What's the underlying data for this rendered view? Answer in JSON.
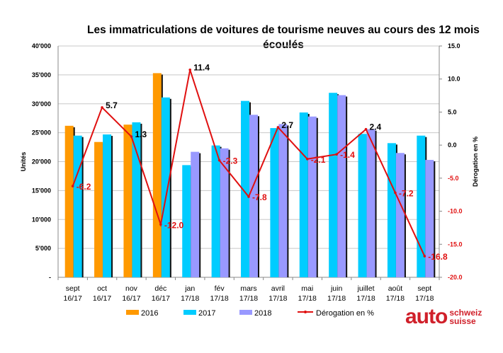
{
  "chart_data": {
    "type": "bar",
    "title": "Les immatriculations de voitures de tourisme neuves au cours des 12 mois écoulés",
    "ylabel": "Unités",
    "y2label": "Dérogation en %",
    "ylim": [
      0,
      40000
    ],
    "y2lim": [
      -20,
      15
    ],
    "yticks": [
      "-",
      "5'000",
      "10'000",
      "15'000",
      "20'000",
      "25'000",
      "30'000",
      "35'000",
      "40'000"
    ],
    "y2ticks": [
      "-20.0",
      "-15.0",
      "-10.0",
      "-5.0",
      "0.0",
      "5.0",
      "10.0",
      "15.0"
    ],
    "grid": true,
    "legend": "bottom",
    "categories": [
      [
        "sept",
        "16/17"
      ],
      [
        "oct",
        "16/17"
      ],
      [
        "nov",
        "16/17"
      ],
      [
        "déc",
        "16/17"
      ],
      [
        "jan",
        "17/18"
      ],
      [
        "fév",
        "17/18"
      ],
      [
        "mars",
        "17/18"
      ],
      [
        "avril",
        "17/18"
      ],
      [
        "mai",
        "17/18"
      ],
      [
        "juin",
        "17/18"
      ],
      [
        "juillet",
        "17/18"
      ],
      [
        "août",
        "17/18"
      ],
      [
        "sept",
        "17/18"
      ]
    ],
    "series": [
      {
        "name": "2016",
        "type": "bar",
        "color": "#ff9900",
        "values": [
          26200,
          23400,
          26400,
          35300,
          null,
          null,
          null,
          null,
          null,
          null,
          null,
          null,
          null
        ]
      },
      {
        "name": "2017",
        "type": "bar",
        "color": "#00ccff",
        "values": [
          24500,
          24700,
          26800,
          31100,
          19400,
          22800,
          30500,
          25800,
          28500,
          31900,
          24800,
          23200,
          24500
        ]
      },
      {
        "name": "2018",
        "type": "bar",
        "color": "#9999ff",
        "values": [
          null,
          null,
          null,
          null,
          21700,
          22300,
          28100,
          26500,
          27800,
          31500,
          25600,
          21500,
          20300
        ]
      },
      {
        "name": "Dérogation en %",
        "type": "line",
        "axis": "right",
        "color": "#e01010",
        "values": [
          -6.2,
          5.7,
          1.3,
          -12.0,
          11.4,
          -2.3,
          -7.8,
          2.7,
          -2.1,
          -1.4,
          2.4,
          -7.2,
          -16.8
        ],
        "labels": [
          "-6.2",
          "5.7",
          "1.3",
          "-12.0",
          "11.4",
          "-2.3",
          "-7.8",
          "2.7",
          "-2.1",
          "-1.4",
          "2.4",
          "-7.2",
          "-16.8"
        ]
      }
    ]
  },
  "logo": {
    "main": "auto",
    "line1": "schweiz",
    "line2": "suisse"
  }
}
